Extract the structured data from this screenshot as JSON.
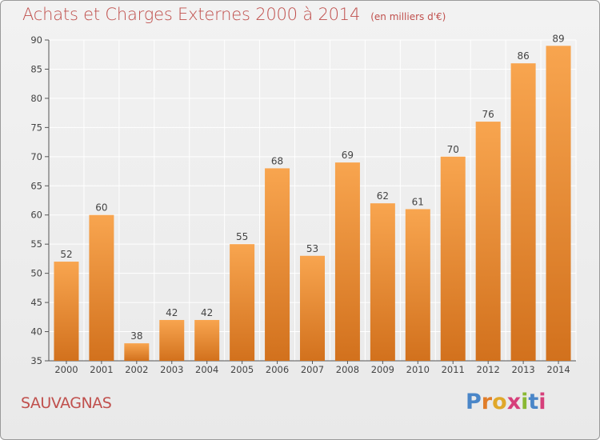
{
  "header": {
    "title": "Achats et Charges Externes 2000 à 2014",
    "subtitle": "(en milliers d'€)"
  },
  "footer": {
    "commune": "SAUVAGNAS",
    "logo": "Proxiti"
  },
  "colors": {
    "title": "#c0504d",
    "bar_light": "#f7a04b",
    "bar_dark": "#d4731f",
    "grid": "#ffffff",
    "axis": "#555555"
  },
  "chart_data": {
    "type": "bar",
    "title": "Achats et Charges Externes 2000 à 2014",
    "subtitle": "(en milliers d'€)",
    "xlabel": "",
    "ylabel": "",
    "categories": [
      "2000",
      "2001",
      "2002",
      "2003",
      "2004",
      "2005",
      "2006",
      "2007",
      "2008",
      "2009",
      "2010",
      "2011",
      "2012",
      "2013",
      "2014"
    ],
    "values": [
      52,
      60,
      38,
      42,
      42,
      55,
      68,
      53,
      69,
      62,
      61,
      70,
      76,
      86,
      89
    ],
    "ylim": [
      35,
      90
    ],
    "yticks": [
      35,
      40,
      45,
      50,
      55,
      60,
      65,
      70,
      75,
      80,
      85,
      90
    ],
    "grid": true,
    "data_labels": true
  }
}
